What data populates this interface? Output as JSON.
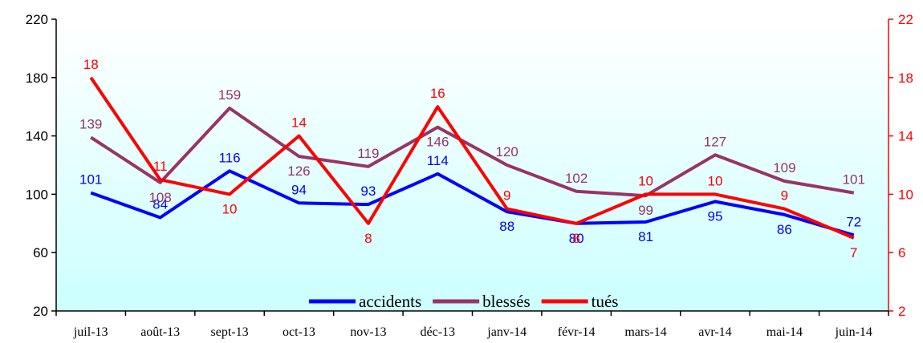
{
  "chart_data": {
    "type": "line",
    "title": "",
    "xlabel": "",
    "ylabel": "",
    "categories": [
      "juil-13",
      "août-13",
      "sept-13",
      "oct-13",
      "nov-13",
      "déc-13",
      "janv-14",
      "févr-14",
      "mars-14",
      "avr-14",
      "mai-14",
      "juin-14"
    ],
    "y_left": {
      "min": 20,
      "max": 220,
      "ticks": [
        20,
        60,
        100,
        140,
        180,
        220
      ],
      "color": "#000000"
    },
    "y_right": {
      "min": 2,
      "max": 22,
      "ticks": [
        2,
        6,
        10,
        14,
        18,
        22
      ],
      "color": "#ff0000"
    },
    "background": {
      "top": "#ffffff",
      "bottom": "#ccffff"
    },
    "legend_position": "bottom-center",
    "series": [
      {
        "name": "accidents",
        "axis": "left",
        "color": "#0000ff",
        "values": [
          101,
          84,
          116,
          94,
          93,
          114,
          88,
          80,
          81,
          95,
          86,
          72
        ]
      },
      {
        "name": "blessés",
        "axis": "left",
        "color": "#993366",
        "values": [
          139,
          108,
          159,
          126,
          119,
          146,
          120,
          102,
          99,
          127,
          109,
          101
        ]
      },
      {
        "name": "tués",
        "axis": "right",
        "color": "#ff0000",
        "values": [
          18,
          11,
          10,
          14,
          8,
          16,
          9,
          8,
          10,
          10,
          9,
          7
        ]
      }
    ]
  }
}
